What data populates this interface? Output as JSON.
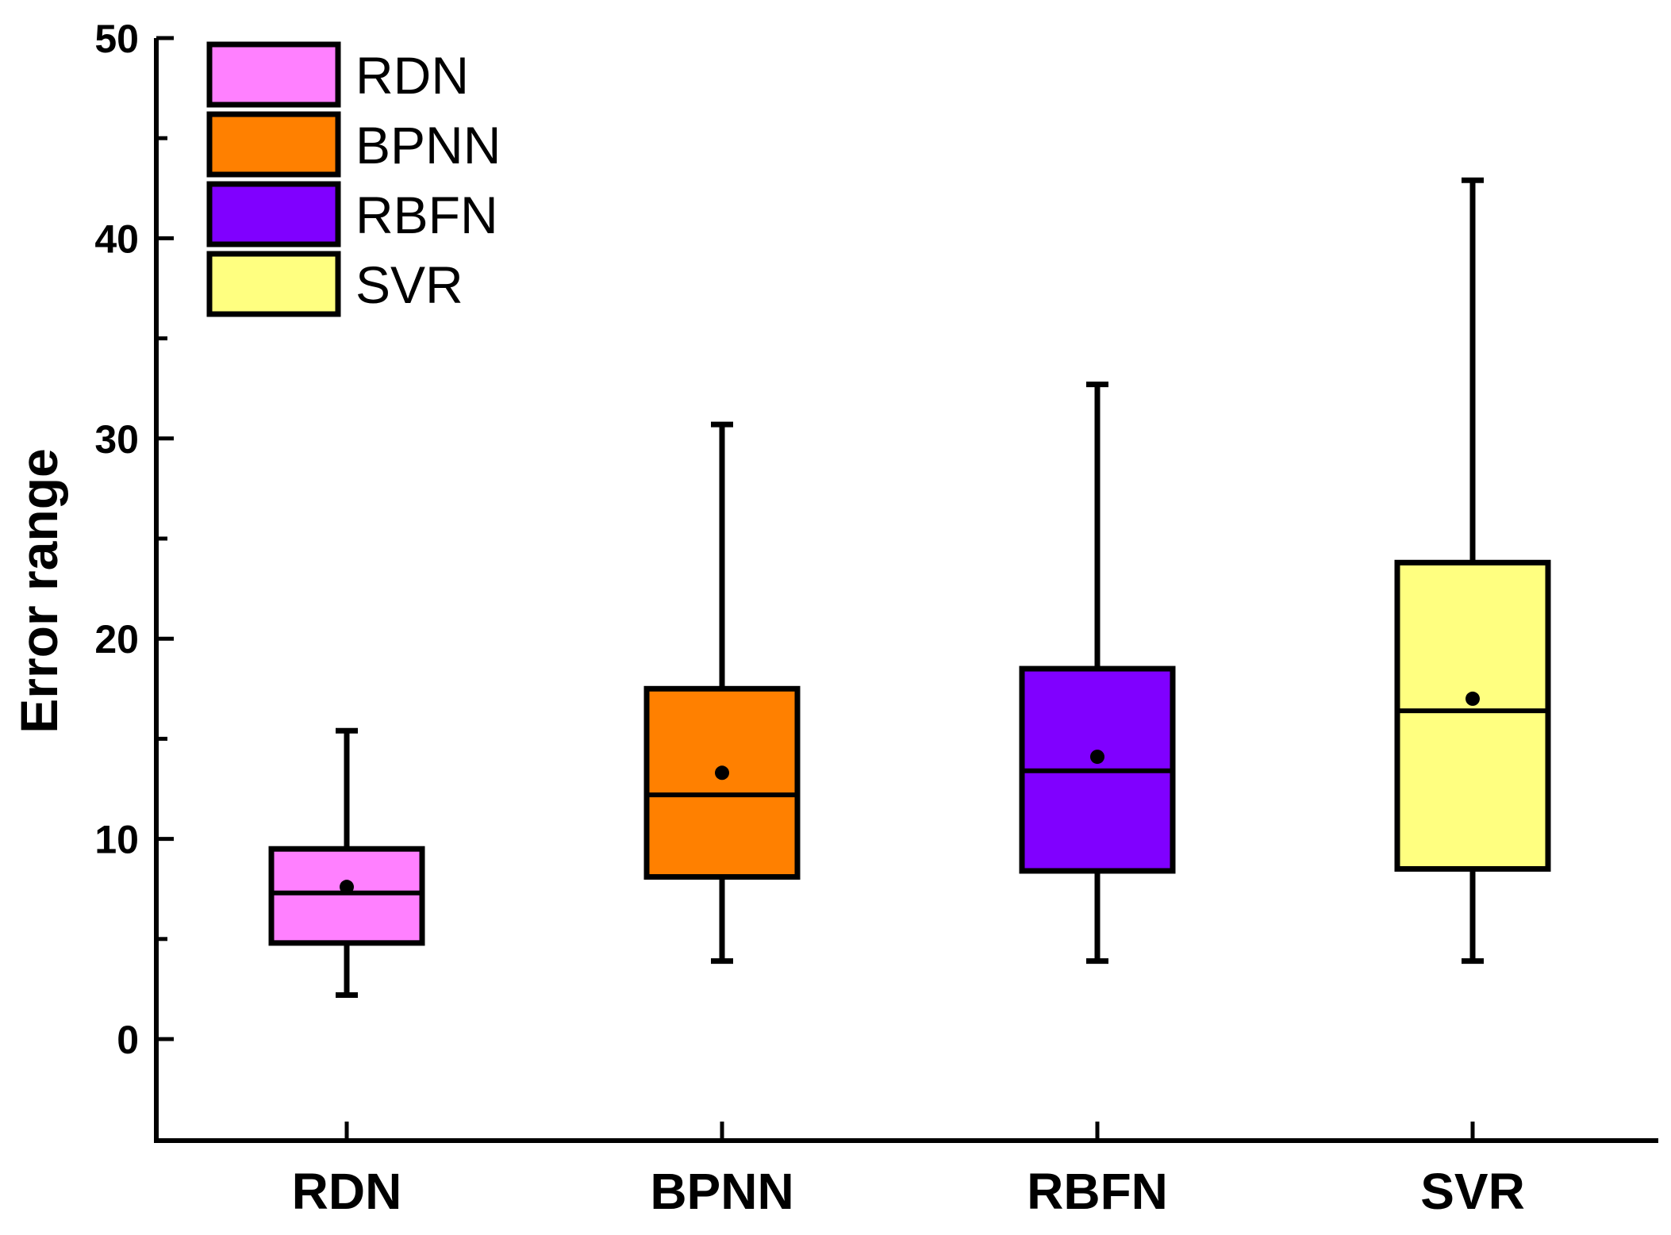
{
  "chart_data": {
    "type": "box",
    "title": "",
    "xlabel": "",
    "ylabel": "Error range",
    "ylim": [
      -5,
      50
    ],
    "yticks": [
      0,
      10,
      20,
      30,
      40,
      50
    ],
    "ytick_labels": [
      "0",
      "10",
      "20",
      "30",
      "40",
      "50"
    ],
    "categories": [
      "RDN",
      "BPNN",
      "RBFN",
      "SVR"
    ],
    "series": [
      {
        "name": "RDN",
        "color": "#ff80ff",
        "min": 2.2,
        "q1": 4.8,
        "median": 7.3,
        "q3": 9.5,
        "max": 15.4,
        "mean": 7.6
      },
      {
        "name": "BPNN",
        "color": "#ff8000",
        "min": 3.9,
        "q1": 8.1,
        "median": 12.2,
        "q3": 17.5,
        "max": 30.7,
        "mean": 13.3
      },
      {
        "name": "RBFN",
        "color": "#8000ff",
        "min": 3.9,
        "q1": 8.4,
        "median": 13.4,
        "q3": 18.5,
        "max": 32.7,
        "mean": 14.1
      },
      {
        "name": "SVR",
        "color": "#ffff80",
        "min": 3.9,
        "q1": 8.5,
        "median": 16.4,
        "q3": 23.8,
        "max": 42.9,
        "mean": 17.0
      }
    ],
    "legend": {
      "position": "top-left",
      "entries": [
        "RDN",
        "BPNN",
        "RBFN",
        "SVR"
      ]
    }
  }
}
